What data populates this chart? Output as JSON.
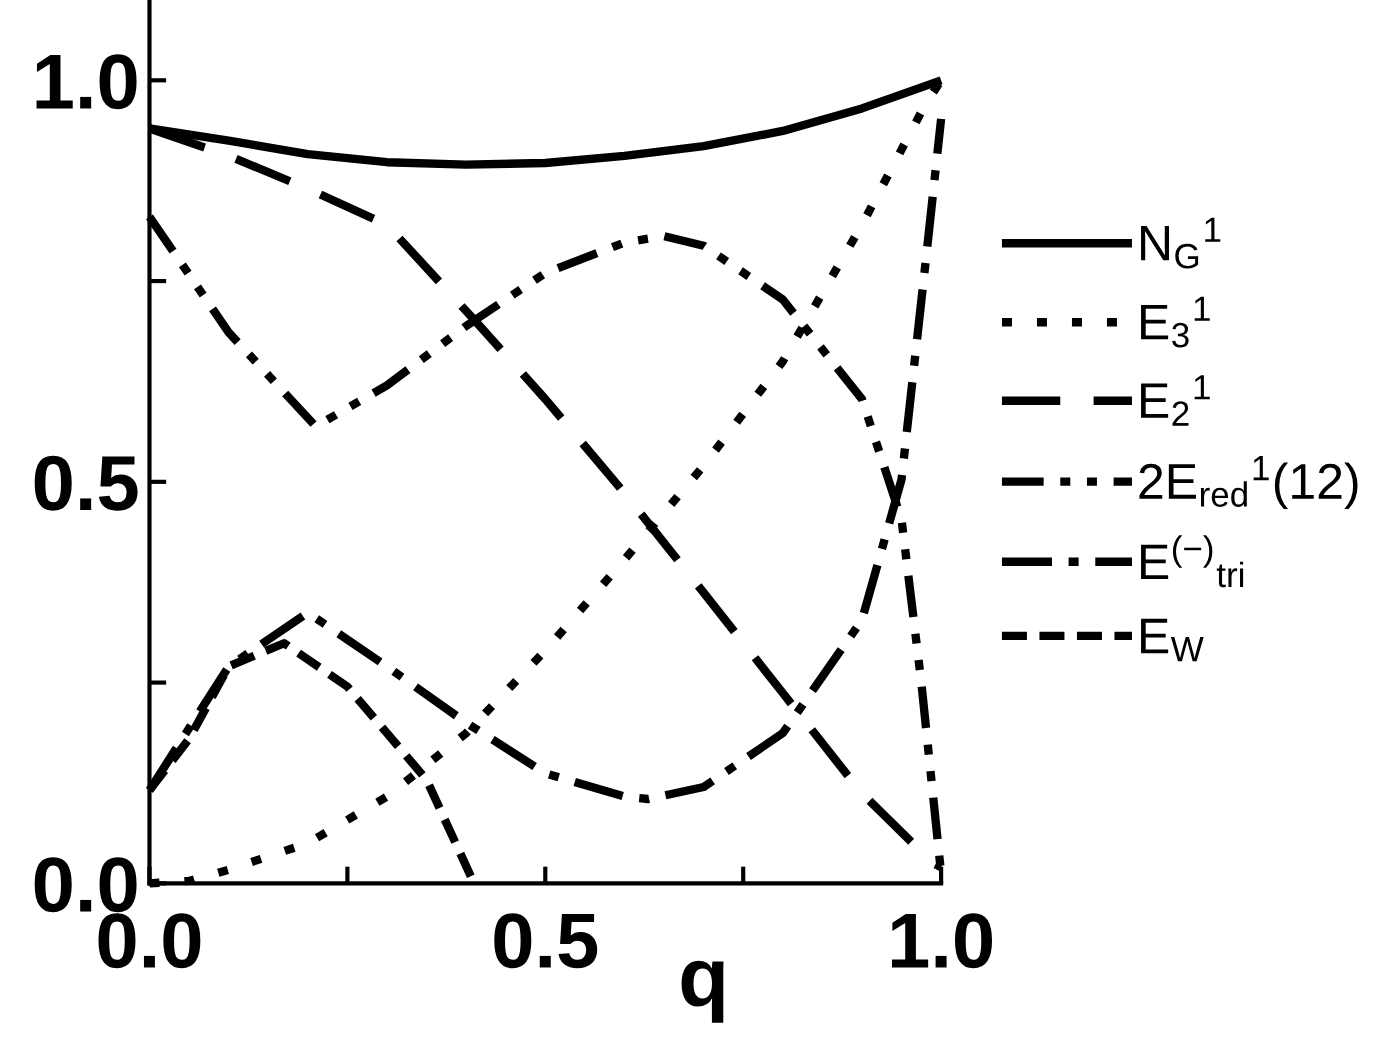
{
  "chart_data": {
    "type": "line",
    "xlabel": "q",
    "xlim": [
      0,
      1.0
    ],
    "ylim": [
      0,
      1.1
    ],
    "xticks": [
      {
        "value": 0,
        "label": "0.0"
      },
      {
        "value": 0.25,
        "label": null
      },
      0.5,
      {
        "value": 0.75,
        "label": null
      },
      {
        "value": 1,
        "label": "1.0"
      }
    ],
    "yticks": [
      {
        "value": 0,
        "label": "0.0"
      },
      {
        "value": 0.25,
        "label": null
      },
      0.5,
      {
        "value": 0.75,
        "label": null
      },
      {
        "value": 1,
        "label": "1.0"
      }
    ],
    "grid": false,
    "legend": "right",
    "marker": "none",
    "series": [
      {
        "name": "N$_{G}$$^{1}$",
        "color": "#000000",
        "line_style": "solid",
        "x": [
          0,
          0.1,
          0.2,
          0.3,
          0.4,
          0.5,
          0.6,
          0.7,
          0.8,
          0.9,
          1.0
        ],
        "values": [
          0.94,
          0.925,
          0.908,
          0.898,
          0.895,
          0.897,
          0.906,
          0.918,
          0.937,
          0.965,
          1.0
        ]
      },
      {
        "name": "E$_{3}$$^{1}$",
        "color": "#000000",
        "line_style": "dotted",
        "x": [
          0,
          0.05,
          0.1,
          0.2,
          0.3,
          0.4,
          0.5,
          0.6,
          0.7,
          0.8,
          0.9,
          0.98,
          1.0
        ],
        "values": [
          0.0,
          0.003,
          0.017,
          0.05,
          0.108,
          0.187,
          0.29,
          0.403,
          0.52,
          0.65,
          0.82,
          0.97,
          1.0
        ]
      },
      {
        "name": "E$_{2}$$^{1}$",
        "color": "#000000",
        "line_style": "long_dashed",
        "x": [
          0,
          0.1,
          0.2,
          0.3,
          0.41,
          0.5,
          0.6,
          0.7,
          0.8,
          0.9,
          0.99,
          1.0
        ],
        "values": [
          0.94,
          0.906,
          0.865,
          0.82,
          0.702,
          0.603,
          0.486,
          0.362,
          0.237,
          0.112,
          0.025,
          0.02
        ]
      },
      {
        "name": "2E$_{red}$$^{1}$(12)",
        "color": "#000000",
        "line_style": "dashdotdot",
        "x": [
          0,
          0.1,
          0.21,
          0.3,
          0.4,
          0.5,
          0.6,
          0.65,
          0.7,
          0.8,
          0.9,
          0.95,
          0.975,
          1.0
        ],
        "values": [
          0.83,
          0.686,
          0.569,
          0.62,
          0.694,
          0.76,
          0.798,
          0.806,
          0.794,
          0.727,
          0.603,
          0.453,
          0.25,
          0.012
        ]
      },
      {
        "name": "E$^{(−)}$$_{tri}$",
        "color": "#000000",
        "line_style": "dashdot",
        "x": [
          0,
          0.1,
          0.2,
          0.3,
          0.4,
          0.5,
          0.6,
          0.63,
          0.7,
          0.8,
          0.9,
          0.95,
          0.98,
          1.0
        ],
        "values": [
          0.116,
          0.27,
          0.337,
          0.27,
          0.2,
          0.137,
          0.108,
          0.105,
          0.12,
          0.187,
          0.328,
          0.503,
          0.77,
          0.952
        ]
      },
      {
        "name": "E$_{W}$",
        "color": "#000000",
        "line_style": "dashed",
        "x": [
          0,
          0.05,
          0.1,
          0.17,
          0.25,
          0.3,
          0.35,
          0.41
        ],
        "values": [
          0.116,
          0.18,
          0.27,
          0.299,
          0.245,
          0.187,
          0.129,
          0.0
        ]
      }
    ]
  }
}
